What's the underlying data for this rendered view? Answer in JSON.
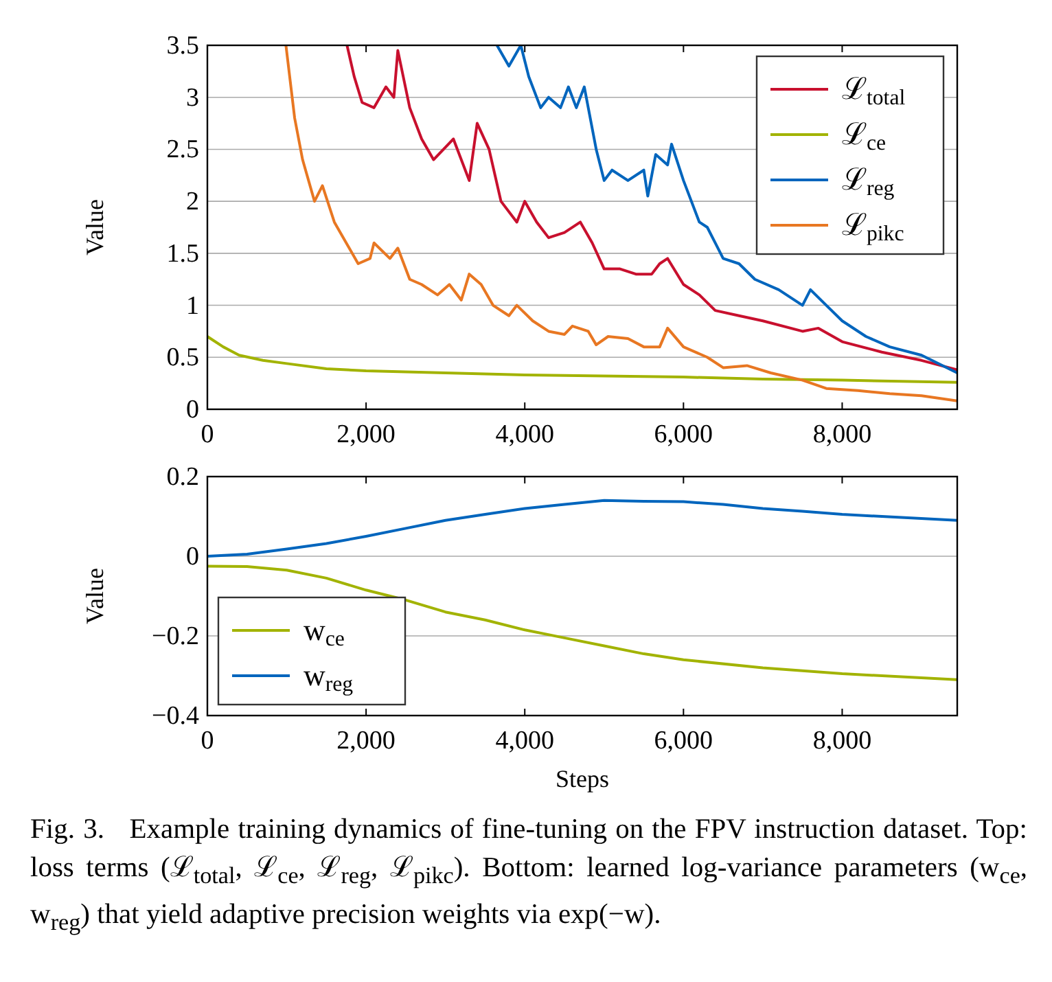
{
  "chart_data": [
    {
      "type": "line",
      "ylabel": "Value",
      "xlim": [
        0,
        9450
      ],
      "ylim": [
        0,
        3.5
      ],
      "xticks": [
        0,
        {
          "value": 2000,
          "label": "2,000"
        },
        {
          "value": 4000,
          "label": "4,000"
        },
        {
          "value": 6000,
          "label": "6,000"
        },
        {
          "value": 8000,
          "label": "8,000"
        }
      ],
      "yticks": [
        0,
        0.5,
        1,
        1.5,
        2,
        2.5,
        3,
        3.5
      ],
      "grid": "y",
      "legend": "top right",
      "marker": "none",
      "line_style": "solid",
      "series": [
        {
          "name": "ℒ$_{total}$",
          "color": "#c8102e",
          "x": [
            1760,
            1850,
            1950,
            2100,
            2250,
            2350,
            2400,
            2550,
            2700,
            2850,
            3100,
            3300,
            3400,
            3550,
            3700,
            3900,
            4000,
            4150,
            4300,
            4500,
            4700,
            4850,
            5000,
            5200,
            5400,
            5600,
            5700,
            5800,
            6000,
            6200,
            6400,
            6700,
            7000,
            7500,
            7700,
            8000,
            8500,
            9000,
            9450
          ],
          "values": [
            3.5,
            3.2,
            2.95,
            2.9,
            3.1,
            3.0,
            3.45,
            2.9,
            2.6,
            2.4,
            2.6,
            2.2,
            2.75,
            2.5,
            2.0,
            1.8,
            2.0,
            1.8,
            1.65,
            1.7,
            1.8,
            1.6,
            1.35,
            1.35,
            1.3,
            1.3,
            1.4,
            1.45,
            1.2,
            1.1,
            0.95,
            0.9,
            0.85,
            0.75,
            0.78,
            0.65,
            0.55,
            0.47,
            0.38
          ]
        },
        {
          "name": "ℒ$_{ce}$",
          "color": "#a2b300",
          "x": [
            0,
            200,
            400,
            700,
            1000,
            1500,
            2000,
            2500,
            3000,
            4000,
            5000,
            6000,
            7000,
            8000,
            9450
          ],
          "values": [
            0.7,
            0.6,
            0.52,
            0.47,
            0.44,
            0.39,
            0.37,
            0.36,
            0.35,
            0.33,
            0.32,
            0.31,
            0.29,
            0.28,
            0.26
          ]
        },
        {
          "name": "ℒ$_{reg}$",
          "color": "#0065bd",
          "x": [
            3650,
            3800,
            3950,
            4050,
            4200,
            4300,
            4450,
            4550,
            4650,
            4750,
            4900,
            5000,
            5100,
            5300,
            5500,
            5550,
            5650,
            5800,
            5850,
            6000,
            6200,
            6300,
            6400,
            6500,
            6700,
            6900,
            7200,
            7500,
            7600,
            7800,
            8000,
            8300,
            8600,
            9000,
            9450
          ],
          "values": [
            3.5,
            3.3,
            3.5,
            3.2,
            2.9,
            3.0,
            2.9,
            3.1,
            2.9,
            3.1,
            2.5,
            2.2,
            2.3,
            2.2,
            2.3,
            2.05,
            2.45,
            2.35,
            2.55,
            2.2,
            1.8,
            1.75,
            1.6,
            1.45,
            1.4,
            1.25,
            1.15,
            1.0,
            1.15,
            1.0,
            0.85,
            0.7,
            0.6,
            0.52,
            0.35
          ]
        },
        {
          "name": "ℒ$_{pikc}$",
          "color": "#e87722",
          "x": [
            990,
            1100,
            1200,
            1350,
            1450,
            1600,
            1750,
            1900,
            2050,
            2100,
            2300,
            2400,
            2550,
            2700,
            2900,
            3050,
            3200,
            3300,
            3450,
            3600,
            3800,
            3900,
            4100,
            4300,
            4500,
            4600,
            4800,
            4900,
            5050,
            5300,
            5500,
            5700,
            5800,
            6000,
            6300,
            6500,
            6800,
            7100,
            7500,
            7800,
            8200,
            8600,
            9000,
            9450
          ],
          "values": [
            3.5,
            2.8,
            2.4,
            2.0,
            2.15,
            1.8,
            1.6,
            1.4,
            1.45,
            1.6,
            1.45,
            1.55,
            1.25,
            1.2,
            1.1,
            1.2,
            1.05,
            1.3,
            1.2,
            1.0,
            0.9,
            1.0,
            0.85,
            0.75,
            0.72,
            0.8,
            0.75,
            0.62,
            0.7,
            0.68,
            0.6,
            0.6,
            0.78,
            0.6,
            0.5,
            0.4,
            0.42,
            0.35,
            0.28,
            0.2,
            0.18,
            0.15,
            0.13,
            0.08
          ]
        }
      ]
    },
    {
      "type": "line",
      "xlabel": "Steps",
      "ylabel": "Value",
      "xlim": [
        0,
        9450
      ],
      "ylim": [
        -0.4,
        0.2
      ],
      "xticks": [
        0,
        {
          "value": 2000,
          "label": "2,000"
        },
        {
          "value": 4000,
          "label": "4,000"
        },
        {
          "value": 6000,
          "label": "6,000"
        },
        {
          "value": 8000,
          "label": "8,000"
        }
      ],
      "yticks": [
        {
          "value": -0.4,
          "label": "−0.4"
        },
        {
          "value": -0.2,
          "label": "−0.2"
        },
        0,
        0.2
      ],
      "grid": "y",
      "legend": "bottom left",
      "marker": "none",
      "line_style": "solid",
      "series": [
        {
          "name": "w$_{ce}$",
          "color": "#a2b300",
          "x": [
            0,
            500,
            1000,
            1500,
            2000,
            2500,
            3000,
            3500,
            4000,
            4500,
            5000,
            5500,
            6000,
            7000,
            8000,
            9450
          ],
          "values": [
            -0.025,
            -0.026,
            -0.035,
            -0.055,
            -0.085,
            -0.11,
            -0.14,
            -0.16,
            -0.185,
            -0.205,
            -0.225,
            -0.245,
            -0.26,
            -0.28,
            -0.295,
            -0.31
          ]
        },
        {
          "name": "w$_{reg}$",
          "color": "#0065bd",
          "x": [
            0,
            500,
            1000,
            1500,
            2000,
            2500,
            3000,
            3500,
            4000,
            4500,
            5000,
            5500,
            6000,
            6500,
            7000,
            7500,
            8000,
            8500,
            9450
          ],
          "values": [
            0,
            0.005,
            0.018,
            0.032,
            0.05,
            0.07,
            0.09,
            0.105,
            0.12,
            0.13,
            0.14,
            0.138,
            0.137,
            0.13,
            0.12,
            0.113,
            0.105,
            0.1,
            0.09
          ]
        }
      ],
      "annotations": [
        "Fig. 3.   Example training dynamics of fine-tuning on the FPV instruction dataset. Top: loss terms (ℒ$_{total}$, ℒ$_{ce}$, ℒ$_{reg}$, ℒ$_{pikc}$). Bottom: learned log-variance parameters (w$_{ce}$, w$_{reg}$) that yield adaptive precision weights via exp(−w)."
      ]
    }
  ]
}
